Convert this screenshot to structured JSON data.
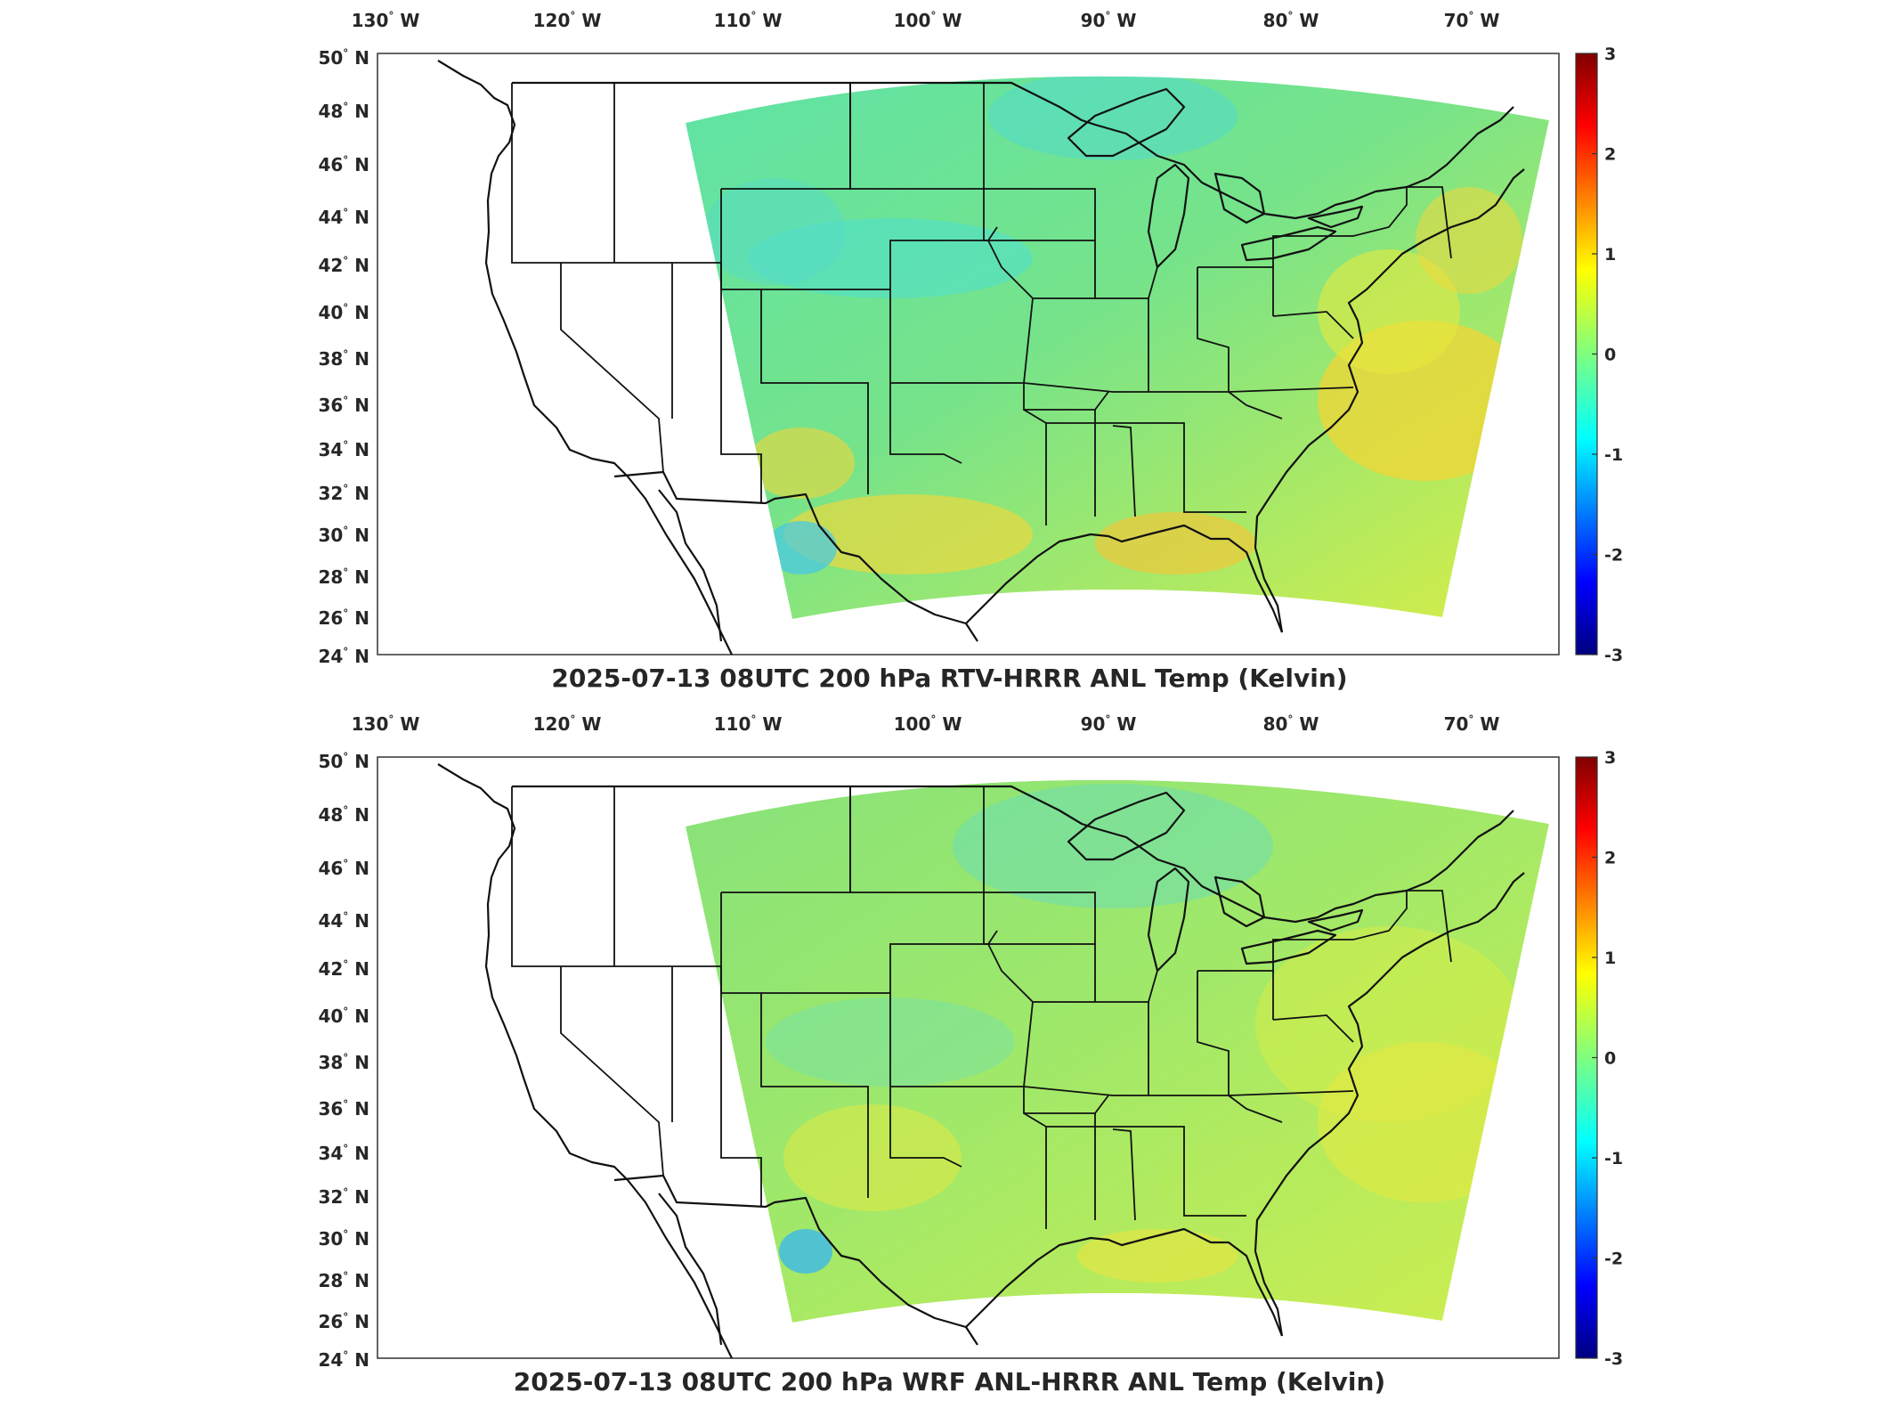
{
  "panels": [
    {
      "title": "2025-07-13 08UTC 200 hPa RTV-HRRR ANL Temp (Kelvin)",
      "variant": "rtv"
    },
    {
      "title": "2025-07-13 08UTC 200 hPa WRF ANL-HRRR ANL Temp (Kelvin)",
      "variant": "wrf"
    }
  ],
  "lon_ticks": [
    "130",
    "120",
    "110",
    "100",
    "90",
    "80",
    "70"
  ],
  "lon_suffix": "W",
  "lat_ticks": [
    "50",
    "48",
    "46",
    "44",
    "42",
    "40",
    "38",
    "36",
    "34",
    "32",
    "30",
    "28",
    "26",
    "24"
  ],
  "lat_suffix": "N",
  "degree_symbol": "°",
  "colorbar": {
    "ticks": [
      "3",
      "2",
      "1",
      "0",
      "-1",
      "-2",
      "-3"
    ],
    "range": [
      -3,
      3
    ],
    "colormap": "jet"
  },
  "colors": {
    "field_base": "#7fe07a",
    "warm": "#f0ea3a",
    "cool": "#3fd8d8",
    "outline": "#111111"
  }
}
